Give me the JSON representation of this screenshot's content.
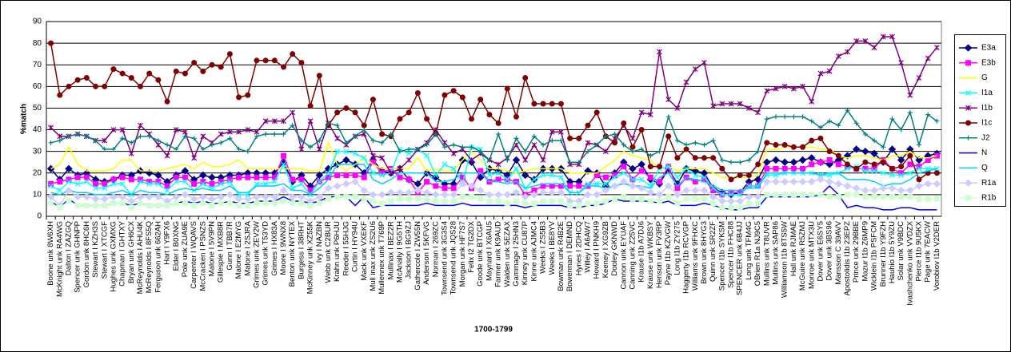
{
  "chart_data": {
    "type": "line",
    "x_label": "1700-1799",
    "y_label": "%match",
    "ylim": [
      0,
      90
    ],
    "yticks": [
      0,
      10,
      20,
      30,
      40,
      50,
      60,
      70,
      80,
      90
    ],
    "grid": true,
    "legend": "right",
    "categories": [
      "Boone unk 8W6XH",
      "McKnight unk RA4WG",
      "Dalton I ZAZGQ",
      "Spencer unk GHNPP",
      "Gordon unk 8HC6H",
      "Stewart I KZH3S",
      "Stewart I XTCGF",
      "Hughes unk GXMXG",
      "Chapman I GHTXY",
      "Bryan unk GH6CX",
      "McReynolds I AHU4K",
      "McReynolds I 8FS5Q",
      "Ferguson unk 662AH",
      "Hart I Y9FX6",
      "Elder I B0XNG",
      "Pole unk ZUA9E",
      "Carpenter I WQAVS",
      "McCracken I PSNZS",
      "Malone I 5V9PN",
      "Gillespie I MXB8R",
      "Gunn I TBB7R",
      "Malone I E2MYG",
      "Malone I 2SJRA",
      "Grimes unk ZEV2W",
      "Grimes unk T53YD",
      "Grimes I HX83A",
      "Moore I 9WNX8",
      "Benton unk NYTEX",
      "Burgess I 38RHT",
      "McKinney unk XZ55K",
      "Ivy I NAZBN",
      "Webb unk C2BUR",
      "Krahn unk P6HJU",
      "Reeder I 55HJG",
      "Curtin I HY94U",
      "Mack unk VXEKF",
      "Mull inax unk ZS2U6",
      "Mullennex unk T769P",
      "Mullinax I BEZ2R",
      "McAnally I 9G5TH",
      "Jackson I BG9ZJ",
      "Gathercole I ZW55N",
      "Anderson I 5KFVG",
      "Norman I 269ZC",
      "Townsend unk 3G3S4",
      "Townsend unk JQS28",
      "Morgan unk HF7S7",
      "Felix I2 TG2DX",
      "Goode unk BTCGP",
      "Maynard I X6AU5",
      "Farmer unk K9AUD",
      "Walden unk 5EZAX",
      "Gammage I 25HN3",
      "Kinney unk CU87P",
      "Kinne unk AJMC4",
      "Weeks I ZS5B3",
      "Weeks I BE8YV",
      "Bowman unk R4B2E",
      "Bowerman I DEMND",
      "Hynes I 2DHCQ",
      "Willey I A6AW7",
      "Howard I PNKH9",
      "Keeney I XG9ZB",
      "Dooley GKNWD",
      "Cannon unk EYUAF",
      "Canning unk Z25VC",
      "Krause I1b A7DJ6",
      "Krause unk WKBSY",
      "Henson unk FV3RP",
      "Payne I1b KZVGW",
      "Long I1b ZY275",
      "Haggerty I1b RCVGP",
      "Williams unk 9FHXC",
      "Brown unk 8HYG3",
      "Quinn unk SR2ZF",
      "Spencer I1b SYKSM",
      "Spencer I1b FHC88",
      "SPENCER unk 6B4JJ",
      "Long unk TFM4G",
      "OBrien R1a NJ9C5",
      "Mullins unk T8UVR",
      "Mullins unk SAP86",
      "Williamson I1b 8TS5W",
      "Hall unk RJMAE",
      "McGuire unk R5ZMJ",
      "Monroe unk MTX3U",
      "Dover unk E6SY5",
      "Dover unk 3BS96",
      "Mansson C 39AVV",
      "Apostolidis I1b 23EPZ",
      "Prince unk 29BBE",
      "Mazur I1b Z6MP9",
      "Wicklein I1b PSFCM",
      "Brunner I1b Y9FZH",
      "Hauhio I1b 5Y9ZU",
      "Solar unk V9BDC",
      "Ivashchenko unk VVDZX",
      "Pierce I1b 9U5KX",
      "Page unk 7EACW",
      "Vorobiov I1b V2DER"
    ],
    "series": [
      {
        "name": "E3a",
        "color": "#000080",
        "marker": "diamond",
        "values": [
          22,
          17,
          22,
          19,
          20,
          17,
          16,
          17,
          19,
          19,
          21,
          20,
          19,
          16,
          19,
          21,
          17,
          19,
          18,
          18,
          19,
          19,
          20,
          20,
          20,
          20,
          25,
          16,
          19,
          14,
          19,
          22,
          24,
          26,
          24,
          20,
          26,
          21,
          20,
          22,
          17,
          15,
          20,
          18,
          15,
          15,
          26,
          25,
          18,
          22,
          21,
          19,
          26,
          19,
          17,
          22,
          22,
          22,
          16,
          16,
          21,
          20,
          14,
          20,
          25,
          22,
          24,
          17,
          15,
          22,
          15,
          22,
          21,
          20,
          13,
          11,
          10,
          11,
          16,
          17,
          25,
          26,
          25,
          25,
          26,
          27,
          25,
          24,
          26,
          28,
          31,
          30,
          29,
          25,
          31,
          26,
          31,
          26,
          28,
          29
        ]
      },
      {
        "name": "E3b",
        "color": "#ff00ff",
        "marker": "square",
        "values": [
          15,
          16,
          17,
          18,
          18,
          15,
          15,
          17,
          18,
          17,
          17,
          16,
          16,
          14,
          18,
          18,
          15,
          16,
          15,
          16,
          17,
          18,
          18,
          18,
          18,
          18,
          28,
          17,
          17,
          12,
          16,
          18,
          19,
          19,
          19,
          18,
          25,
          20,
          22,
          18,
          17,
          11,
          16,
          14,
          13,
          13,
          18,
          13,
          21,
          16,
          17,
          17,
          16,
          10,
          12,
          14,
          14,
          14,
          14,
          14,
          14,
          19,
          18,
          19,
          23,
          17,
          21,
          18,
          16,
          23,
          13,
          18,
          16,
          17,
          12,
          10,
          11,
          11,
          14,
          14,
          22,
          22,
          22,
          22,
          22,
          24,
          25,
          26,
          24,
          23,
          22,
          22,
          22,
          26,
          22,
          20,
          24,
          23,
          26,
          28
        ]
      },
      {
        "name": "G",
        "color": "#ffff00",
        "marker": "none",
        "values": [
          22,
          24,
          32,
          24,
          21,
          21,
          21,
          22,
          26,
          26,
          21,
          21,
          21,
          22,
          23,
          24,
          22,
          25,
          23,
          23,
          24,
          26,
          22,
          22,
          22,
          22,
          22,
          22,
          22,
          21,
          21,
          34,
          24,
          21,
          24,
          27,
          24,
          22,
          22,
          22,
          22,
          27,
          21,
          22,
          21,
          21,
          26,
          30,
          26,
          22,
          22,
          21,
          20,
          21,
          22,
          22,
          22,
          22,
          20,
          20,
          20,
          20,
          23,
          26,
          30,
          28,
          27,
          26,
          22,
          23,
          21,
          22,
          22,
          22,
          20,
          18,
          18,
          18,
          18,
          19,
          31,
          31,
          32,
          32,
          32,
          32,
          31,
          31,
          28,
          27,
          28,
          28,
          27,
          26,
          28,
          28,
          30,
          27,
          27,
          28
        ]
      },
      {
        "name": "I1a",
        "color": "#00ffff",
        "marker": "x",
        "values": [
          14,
          12,
          16,
          15,
          16,
          13,
          13,
          15,
          15,
          10,
          16,
          15,
          15,
          12,
          16,
          16,
          12,
          15,
          13,
          15,
          16,
          10,
          10,
          15,
          15,
          16,
          24,
          13,
          15,
          10,
          16,
          20,
          30,
          30,
          29,
          27,
          20,
          19,
          20,
          31,
          29,
          31,
          28,
          19,
          24,
          22,
          15,
          32,
          31,
          19,
          20,
          17,
          22,
          13,
          17,
          19,
          19,
          18,
          11,
          11,
          15,
          15,
          15,
          18,
          20,
          17,
          17,
          14,
          22,
          23,
          18,
          22,
          19,
          18,
          13,
          10,
          10,
          10,
          14,
          14,
          19,
          19,
          20,
          20,
          20,
          20,
          19,
          19,
          20,
          22,
          23,
          21,
          21,
          20,
          19,
          19,
          20,
          22,
          22,
          22
        ]
      },
      {
        "name": "I1b",
        "color": "#800080",
        "marker": "star",
        "values": [
          41,
          37,
          37,
          38,
          37,
          35,
          35,
          40,
          40,
          29,
          42,
          38,
          33,
          28,
          40,
          39,
          27,
          37,
          34,
          38,
          39,
          39,
          40,
          39,
          44,
          44,
          44,
          48,
          31,
          44,
          31,
          43,
          36,
          33,
          37,
          38,
          28,
          27,
          20,
          22,
          26,
          31,
          34,
          40,
          34,
          29,
          31,
          26,
          29,
          26,
          24,
          27,
          33,
          26,
          33,
          26,
          39,
          39,
          24,
          24,
          34,
          33,
          30,
          36,
          42,
          36,
          48,
          47,
          76,
          54,
          50,
          62,
          68,
          71,
          51,
          52,
          52,
          52,
          50,
          48,
          58,
          59,
          60,
          59,
          60,
          53,
          66,
          67,
          74,
          76,
          81,
          81,
          78,
          83,
          83,
          71,
          56,
          64,
          73,
          78
        ]
      },
      {
        "name": "I1c",
        "color": "#800000",
        "marker": "circle",
        "values": [
          80,
          56,
          60,
          63,
          64,
          60,
          60,
          68,
          66,
          64,
          60,
          66,
          63,
          53,
          67,
          66,
          71,
          67,
          70,
          69,
          75,
          55,
          56,
          72,
          72,
          72,
          69,
          75,
          71,
          51,
          65,
          42,
          48,
          50,
          48,
          42,
          54,
          38,
          37,
          45,
          48,
          57,
          45,
          38,
          56,
          58,
          55,
          45,
          54,
          47,
          43,
          59,
          46,
          64,
          52,
          52,
          52,
          52,
          36,
          36,
          42,
          48,
          37,
          34,
          43,
          32,
          40,
          23,
          23,
          37,
          27,
          31,
          27,
          27,
          27,
          22,
          17,
          19,
          19,
          24,
          34,
          33,
          33,
          32,
          32,
          35,
          36,
          30,
          28,
          24,
          22,
          25,
          24,
          25,
          22,
          23,
          28,
          17,
          20,
          20
        ]
      },
      {
        "name": "J2",
        "color": "#008080",
        "marker": "plus",
        "values": [
          34,
          35,
          37,
          38,
          37,
          35,
          31,
          31,
          36,
          34,
          37,
          37,
          35,
          33,
          31,
          37,
          36,
          31,
          33,
          34,
          36,
          31,
          30,
          37,
          38,
          38,
          38,
          42,
          35,
          32,
          35,
          43,
          42,
          34,
          37,
          40,
          35,
          34,
          38,
          30,
          31,
          31,
          33,
          38,
          32,
          33,
          32,
          32,
          30,
          26,
          38,
          26,
          36,
          30,
          37,
          33,
          35,
          35,
          25,
          25,
          30,
          33,
          37,
          38,
          33,
          30,
          31,
          28,
          30,
          46,
          35,
          33,
          34,
          33,
          35,
          26,
          25,
          25,
          26,
          30,
          45,
          46,
          46,
          46,
          46,
          44,
          41,
          44,
          42,
          49,
          43,
          38,
          35,
          32,
          45,
          40,
          48,
          33,
          47,
          44
        ]
      },
      {
        "name": "N",
        "color": "#0000ff",
        "marker": "none",
        "values": [
          7,
          4,
          8,
          5,
          5,
          5,
          5,
          6,
          6,
          5,
          6,
          5,
          5,
          5,
          6,
          7,
          6,
          7,
          6,
          6,
          7,
          6,
          6,
          7,
          7,
          7,
          9,
          7,
          7,
          6,
          7,
          9,
          9,
          9,
          5,
          9,
          4,
          5,
          5,
          5,
          5,
          5,
          6,
          5,
          5,
          5,
          6,
          5,
          5,
          5,
          5,
          5,
          5,
          4,
          5,
          5,
          5,
          5,
          4,
          4,
          5,
          5,
          6,
          8,
          7,
          7,
          7,
          7,
          6,
          7,
          5,
          5,
          5,
          6,
          5,
          4,
          3,
          3,
          4,
          4,
          9,
          9,
          9,
          9,
          9,
          9,
          10,
          14,
          10,
          4,
          5,
          4,
          4,
          3,
          3,
          4,
          4,
          3,
          3,
          3
        ]
      },
      {
        "name": "Q",
        "color": "#00ccff",
        "marker": "none",
        "values": [
          11,
          10,
          12,
          11,
          11,
          10,
          10,
          11,
          12,
          10,
          12,
          11,
          11,
          10,
          12,
          13,
          12,
          13,
          12,
          12,
          14,
          11,
          11,
          14,
          14,
          14,
          15,
          12,
          12,
          10,
          13,
          17,
          24,
          24,
          24,
          24,
          17,
          15,
          17,
          20,
          20,
          20,
          20,
          16,
          16,
          17,
          20,
          20,
          20,
          16,
          16,
          15,
          16,
          13,
          14,
          15,
          15,
          15,
          11,
          11,
          14,
          14,
          13,
          14,
          15,
          14,
          14,
          13,
          18,
          20,
          14,
          18,
          17,
          16,
          14,
          12,
          12,
          12,
          13,
          13,
          20,
          20,
          20,
          20,
          20,
          20,
          19,
          20,
          20,
          17,
          17,
          17,
          16,
          14,
          15,
          15,
          17,
          20,
          21,
          22
        ]
      },
      {
        "name": "R1a",
        "color": "#ccccff",
        "marker": "diamond",
        "values": [
          9,
          5,
          12,
          9,
          9,
          8,
          8,
          9,
          9,
          7,
          9,
          9,
          9,
          7,
          9,
          10,
          8,
          9,
          8,
          9,
          10,
          8,
          8,
          9,
          9,
          9,
          12,
          9,
          9,
          7,
          9,
          13,
          14,
          15,
          16,
          12,
          10,
          10,
          11,
          11,
          11,
          12,
          11,
          10,
          10,
          10,
          15,
          14,
          12,
          10,
          10,
          10,
          11,
          9,
          10,
          11,
          11,
          11,
          7,
          7,
          10,
          10,
          12,
          14,
          16,
          14,
          13,
          11,
          10,
          14,
          10,
          12,
          12,
          12,
          9,
          7,
          7,
          7,
          9,
          9,
          16,
          16,
          16,
          16,
          16,
          16,
          17,
          16,
          15,
          14,
          13,
          12,
          12,
          13,
          13,
          12,
          12,
          14,
          15,
          15
        ]
      },
      {
        "name": "R1b",
        "color": "#ccffcc",
        "marker": "square",
        "values": [
          6,
          4,
          7,
          5,
          5,
          5,
          5,
          6,
          6,
          4,
          6,
          5,
          5,
          5,
          6,
          6,
          5,
          6,
          5,
          6,
          6,
          5,
          5,
          6,
          6,
          6,
          7,
          6,
          6,
          5,
          6,
          8,
          9,
          9,
          9,
          8,
          7,
          6,
          7,
          8,
          8,
          8,
          8,
          7,
          7,
          7,
          9,
          9,
          8,
          7,
          7,
          6,
          7,
          6,
          6,
          7,
          7,
          7,
          5,
          5,
          6,
          6,
          7,
          8,
          9,
          8,
          8,
          7,
          7,
          9,
          6,
          8,
          8,
          8,
          6,
          4,
          4,
          4,
          6,
          6,
          10,
          10,
          10,
          10,
          10,
          10,
          10,
          9,
          9,
          10,
          10,
          9,
          9,
          9,
          9,
          9,
          9,
          8,
          8,
          8
        ]
      }
    ]
  }
}
